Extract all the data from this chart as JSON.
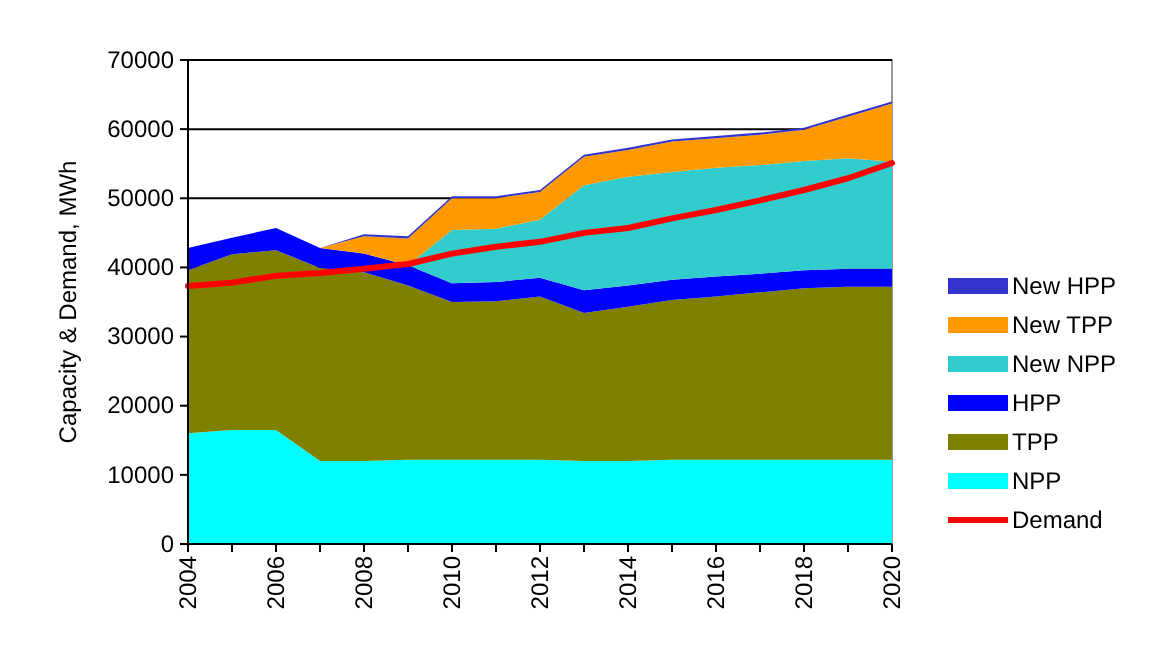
{
  "chart_data": {
    "type": "area",
    "stacked": true,
    "ylabel": "Capacity & Demand, MWh",
    "x": [
      2004,
      2005,
      2006,
      2007,
      2008,
      2009,
      2010,
      2011,
      2012,
      2013,
      2014,
      2015,
      2016,
      2017,
      2018,
      2019,
      2020
    ],
    "xlim": [
      2004,
      2020
    ],
    "xticks": [
      2004,
      {
        "value": 2005,
        "label": null
      },
      2006,
      {
        "value": 2007,
        "label": null
      },
      2008,
      {
        "value": 2009,
        "label": null
      },
      2010,
      {
        "value": 2011,
        "label": null
      },
      2012,
      {
        "value": 2013,
        "label": null
      },
      2014,
      {
        "value": 2015,
        "label": null
      },
      2016,
      {
        "value": 2017,
        "label": null
      },
      2018,
      {
        "value": 2019,
        "label": null
      },
      2020
    ],
    "ylim": [
      0,
      70000
    ],
    "yticks": [
      0,
      10000,
      20000,
      30000,
      40000,
      50000,
      60000,
      70000
    ],
    "grid": "y",
    "legend": "right",
    "series": [
      {
        "name": "NPP",
        "color": "#00ffff",
        "values": [
          16000,
          16500,
          16500,
          12000,
          12000,
          12200,
          12200,
          12200,
          12200,
          12000,
          12000,
          12200,
          12200,
          12200,
          12200,
          12200,
          12200
        ]
      },
      {
        "name": "TPP",
        "color": "#808000",
        "values": [
          23600,
          25400,
          26000,
          27900,
          27300,
          25200,
          22800,
          22900,
          23600,
          21400,
          22300,
          23100,
          23600,
          24200,
          24800,
          25000,
          25000
        ]
      },
      {
        "name": "HPP",
        "color": "#0000ff",
        "values": [
          3200,
          2400,
          3200,
          2900,
          2700,
          2900,
          2700,
          2800,
          2700,
          3300,
          3100,
          2900,
          2900,
          2700,
          2600,
          2600,
          2600
        ]
      },
      {
        "name": "New NPP",
        "color": "#33cccc",
        "values": [
          0,
          0,
          0,
          0,
          0,
          0,
          7700,
          7700,
          8400,
          15200,
          15700,
          15600,
          15700,
          15700,
          15800,
          16000,
          15500
        ]
      },
      {
        "name": "New TPP",
        "color": "#ff9900",
        "values": [
          0,
          0,
          0,
          0,
          2500,
          3900,
          4600,
          4400,
          4000,
          4100,
          3900,
          4400,
          4300,
          4400,
          4500,
          6000,
          8400
        ]
      },
      {
        "name": "New HPP",
        "color": "#3333cc",
        "values": [
          0,
          0,
          0,
          0,
          300,
          300,
          300,
          300,
          300,
          300,
          300,
          300,
          300,
          300,
          300,
          300,
          300
        ]
      },
      {
        "name": "Demand",
        "type": "line",
        "color": "#ff0000",
        "values": [
          37300,
          37800,
          38800,
          39200,
          39800,
          40500,
          42000,
          43000,
          43700,
          45000,
          45700,
          47100,
          48300,
          49700,
          51200,
          52900,
          55100
        ]
      }
    ]
  }
}
